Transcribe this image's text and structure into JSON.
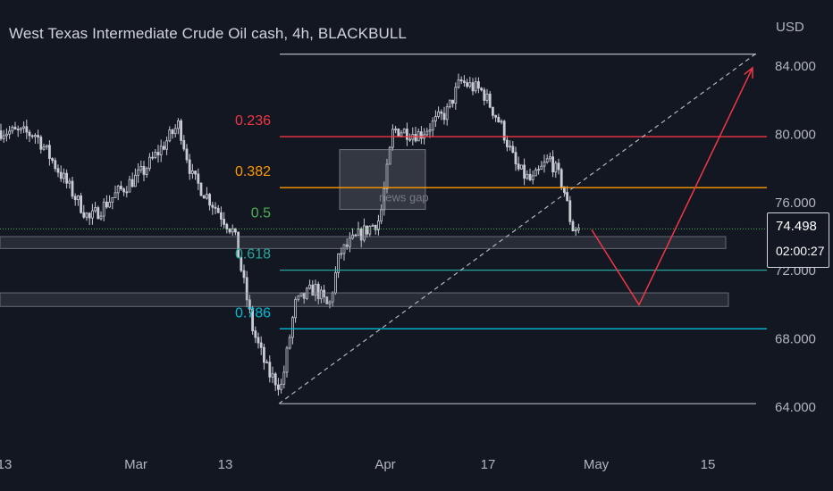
{
  "header": {
    "title": "West Texas Intermediate Crude Oil cash, 4h, BLACKBULL",
    "unit": "USD"
  },
  "price_tag": {
    "price": "74.498",
    "countdown": "02:00:27"
  },
  "colors": {
    "background": "#131722",
    "candle": "#c9ccd3",
    "fib_0_236": "#f23645",
    "fib_0_382": "#ff9800",
    "fib_0_5": "#4caf50",
    "fib_0_618": "#26a69a",
    "fib_0_786": "#00bcd4",
    "fib_range": "#b2b5be",
    "projection": "#f23645",
    "zone": "#2a2e39",
    "axis_text": "#b2b5be"
  },
  "chart_data": {
    "type": "candlestick",
    "title": "West Texas Intermediate Crude Oil cash, 4h, BLACKBULL",
    "y_unit": "USD",
    "ylim": [
      62.5,
      86.5
    ],
    "y_ticks": [
      "64.000",
      "68.000",
      "72.000",
      "76.000",
      "80.000",
      "84.000"
    ],
    "x_ticks": [
      "13",
      "Mar",
      "13",
      "Apr",
      "17",
      "May",
      "15"
    ],
    "last_price": 74.498,
    "close_path": [
      {
        "t": 0,
        "v": 80.2
      },
      {
        "t": 40,
        "v": 80.0
      },
      {
        "t": 70,
        "v": 77.5
      },
      {
        "t": 100,
        "v": 75.0
      },
      {
        "t": 130,
        "v": 76.5
      },
      {
        "t": 160,
        "v": 77.8
      },
      {
        "t": 185,
        "v": 79.5
      },
      {
        "t": 200,
        "v": 80.6
      },
      {
        "t": 215,
        "v": 77.5
      },
      {
        "t": 240,
        "v": 75.8
      },
      {
        "t": 262,
        "v": 74.2
      },
      {
        "t": 283,
        "v": 68.5
      },
      {
        "t": 300,
        "v": 66.0
      },
      {
        "t": 315,
        "v": 65.2
      },
      {
        "t": 330,
        "v": 70.0
      },
      {
        "t": 352,
        "v": 71.0
      },
      {
        "t": 368,
        "v": 69.8
      },
      {
        "t": 380,
        "v": 73.0
      },
      {
        "t": 400,
        "v": 74.0
      },
      {
        "t": 425,
        "v": 75.0
      },
      {
        "t": 440,
        "v": 80.3
      },
      {
        "t": 470,
        "v": 80.0
      },
      {
        "t": 500,
        "v": 81.3
      },
      {
        "t": 515,
        "v": 83.1
      },
      {
        "t": 540,
        "v": 82.5
      },
      {
        "t": 560,
        "v": 80.6
      },
      {
        "t": 578,
        "v": 78.0
      },
      {
        "t": 595,
        "v": 77.2
      },
      {
        "t": 615,
        "v": 78.6
      },
      {
        "t": 630,
        "v": 77.0
      },
      {
        "t": 640,
        "v": 74.5
      },
      {
        "t": 650,
        "v": 74.5
      }
    ],
    "fibonacci": {
      "low": 64.2,
      "high": 84.7,
      "levels": [
        {
          "ratio": 0.236,
          "label": "0.236",
          "price": 79.86
        },
        {
          "ratio": 0.382,
          "label": "0.382",
          "price": 76.87
        },
        {
          "ratio": 0.5,
          "label": "0.5",
          "price": 74.45
        },
        {
          "ratio": 0.618,
          "label": "0.618",
          "price": 72.03
        },
        {
          "ratio": 0.786,
          "label": "0.786",
          "price": 68.59
        }
      ]
    },
    "zones": [
      {
        "from": 73.3,
        "to": 74.0
      },
      {
        "from": 69.9,
        "to": 70.7
      }
    ],
    "annotation": {
      "label": "news gap",
      "from": 75.6,
      "to": 79.1
    },
    "projection": [
      {
        "t": 662,
        "v": 74.4
      },
      {
        "t": 715,
        "v": 70.0
      },
      {
        "t": 842,
        "v": 83.9
      }
    ],
    "trend_line": [
      {
        "t": 312,
        "v": 64.2
      },
      {
        "t": 845,
        "v": 84.7
      }
    ]
  }
}
